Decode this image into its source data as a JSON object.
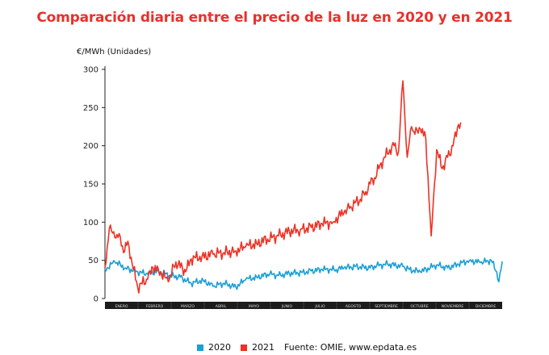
{
  "chart_data": {
    "type": "line",
    "title": "Comparación diaria entre el precio de la luz en 2020 y en 2021",
    "ylabel": "€/MWh (Unidades)",
    "xlabel": "",
    "ylim": [
      0,
      300
    ],
    "yticks": [
      0,
      50,
      100,
      150,
      200,
      250,
      300
    ],
    "categories": [
      "Enero",
      "Febrero",
      "Marzo",
      "Abril",
      "Mayo",
      "Junio",
      "Julio",
      "Agosto",
      "Septiembre",
      "Octubre",
      "Noviembre",
      "Diciembre"
    ],
    "grid": false,
    "legend_position": "bottom",
    "source": "Fuente: OMIE, www.epdata.es",
    "series": [
      {
        "name": "2020",
        "color": "#1a9fd6",
        "x": [
          1,
          10,
          20,
          31,
          40,
          50,
          60,
          70,
          80,
          91,
          100,
          110,
          121,
          130,
          140,
          152,
          160,
          170,
          182,
          190,
          200,
          213,
          220,
          230,
          244,
          250,
          260,
          274,
          280,
          290,
          305,
          315,
          325,
          335,
          345,
          355,
          360,
          362,
          365
        ],
        "values": [
          38,
          48,
          40,
          35,
          32,
          36,
          30,
          28,
          20,
          24,
          16,
          20,
          15,
          25,
          28,
          32,
          30,
          33,
          34,
          36,
          38,
          38,
          40,
          42,
          40,
          43,
          45,
          42,
          38,
          35,
          44,
          40,
          45,
          50,
          47,
          50,
          35,
          22,
          48
        ]
      },
      {
        "name": "2021",
        "color": "#ee3124",
        "x": [
          1,
          5,
          10,
          14,
          18,
          22,
          26,
          31,
          40,
          45,
          50,
          59,
          66,
          75,
          80,
          90,
          100,
          110,
          120,
          130,
          140,
          150,
          160,
          170,
          180,
          190,
          200,
          210,
          215,
          220,
          225,
          230,
          235,
          240,
          244,
          248,
          252,
          256,
          262,
          266,
          270,
          274,
          278,
          282,
          285,
          290,
          295,
          300,
          305,
          310,
          315,
          320,
          325,
          327
        ],
        "values": [
          40,
          92,
          80,
          85,
          60,
          75,
          45,
          15,
          25,
          40,
          38,
          22,
          48,
          35,
          52,
          55,
          58,
          60,
          62,
          68,
          72,
          78,
          82,
          88,
          90,
          93,
          98,
          100,
          108,
          112,
          118,
          125,
          130,
          140,
          150,
          158,
          170,
          182,
          195,
          200,
          192,
          285,
          185,
          225,
          215,
          222,
          210,
          82,
          195,
          170,
          185,
          200,
          228,
          230
        ]
      }
    ]
  }
}
